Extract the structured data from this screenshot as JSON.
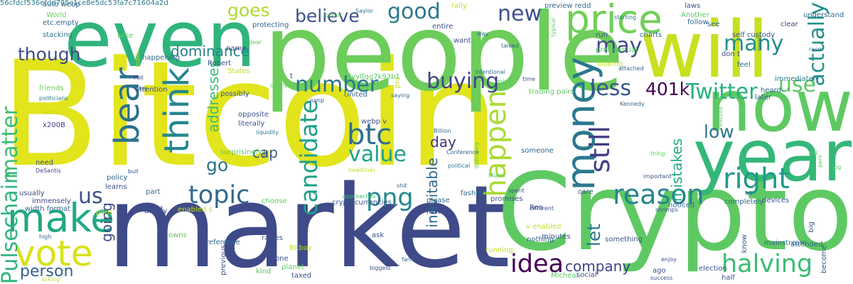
{
  "cloud": {
    "words": [
      {
        "text": "Bitcoin",
        "color": "#e2e41c"
      },
      {
        "text": "market",
        "color": "#3f4a89"
      },
      {
        "text": "Crypto",
        "color": "#5ec962"
      },
      {
        "text": "people",
        "color": "#6ccd5a"
      },
      {
        "text": "even",
        "color": "#2fb47c"
      },
      {
        "text": "will",
        "color": "#c8e020"
      },
      {
        "text": "now",
        "color": "#5ec962"
      },
      {
        "text": "year",
        "color": "#35b779"
      },
      {
        "text": "money",
        "color": "#2a788e"
      },
      {
        "text": "think",
        "color": "#24878e"
      },
      {
        "text": "bear",
        "color": "#2c718e"
      },
      {
        "text": "price",
        "color": "#70cf57"
      },
      {
        "text": "make",
        "color": "#22a884"
      },
      {
        "text": "vote",
        "color": "#d8e219"
      },
      {
        "text": "reason",
        "color": "#25848e"
      },
      {
        "text": "candidate",
        "color": "#1fa088"
      },
      {
        "text": "right",
        "color": "#1f9a8a"
      },
      {
        "text": "still",
        "color": "#433e85"
      },
      {
        "text": "btc",
        "color": "#2d708e"
      },
      {
        "text": "Twitter",
        "color": "#29af7f"
      },
      {
        "text": "Pulsechain",
        "color": "#2fb47c"
      },
      {
        "text": "matter",
        "color": "#3dbc74"
      },
      {
        "text": "halving",
        "color": "#3dbc74"
      },
      {
        "text": "idea",
        "color": "#440154"
      },
      {
        "text": "png",
        "color": "#23898e"
      },
      {
        "text": "topic",
        "color": "#31688e"
      },
      {
        "text": "number",
        "color": "#2a768e"
      },
      {
        "text": "value",
        "color": "#1fa287"
      },
      {
        "text": "buying",
        "color": "#414487"
      },
      {
        "text": "happen",
        "color": "#a8db34"
      },
      {
        "text": "good",
        "color": "#2a788e"
      },
      {
        "text": "many",
        "color": "#21918c"
      },
      {
        "text": "new",
        "color": "#3b528b"
      },
      {
        "text": "actually",
        "color": "#21918c"
      },
      {
        "text": "less",
        "color": "#3b528b"
      },
      {
        "text": "use",
        "color": "#5ec962"
      },
      {
        "text": "may",
        "color": "#3e4a89"
      },
      {
        "text": "401k",
        "color": "#440154"
      },
      {
        "text": "low",
        "color": "#2b758e"
      },
      {
        "text": "though",
        "color": "#3e4989"
      },
      {
        "text": "believe",
        "color": "#3b528b"
      },
      {
        "text": "goes",
        "color": "#addc30"
      },
      {
        "text": "us",
        "color": "#3b528b"
      },
      {
        "text": "person",
        "color": "#355f8d"
      },
      {
        "text": "go",
        "color": "#2c728e"
      },
      {
        "text": "dominance",
        "color": "#26828e"
      },
      {
        "text": "addresses",
        "color": "#3dbc74"
      },
      {
        "text": "cap",
        "color": "#38588c"
      },
      {
        "text": "day",
        "color": "#46327e"
      },
      {
        "text": "mistakes",
        "color": "#22a884"
      },
      {
        "text": "inevitable",
        "color": "#31688e"
      },
      {
        "text": "company",
        "color": "#414487"
      },
      {
        "text": "let",
        "color": "#2a788e"
      },
      {
        "text": "going",
        "color": "#3e4a89"
      },
      {
        "text": "auto webp",
        "color": "#31688e"
      },
      {
        "text": "World",
        "color": "#70cf57"
      },
      {
        "text": "etc.empty",
        "color": "#31688e"
      },
      {
        "text": "stacking",
        "color": "#2a788e"
      },
      {
        "text": "wise",
        "color": "#5ec962"
      },
      {
        "text": "happening",
        "color": "#31688e"
      },
      {
        "text": "friends",
        "color": "#6ccd5a"
      },
      {
        "text": "politicians",
        "color": "#2a788e"
      },
      {
        "text": "enter",
        "color": "#c2df23"
      },
      {
        "text": "x200B",
        "color": "#443983"
      },
      {
        "text": "need",
        "color": "#3b528b"
      },
      {
        "text": "DeSantis",
        "color": "#414487"
      },
      {
        "text": "immensely",
        "color": "#414487"
      },
      {
        "text": "usually",
        "color": "#3e4a89"
      },
      {
        "text": "width format",
        "color": "#31688e"
      },
      {
        "text": "high",
        "color": "#31688e"
      },
      {
        "text": "attention",
        "color": "#3b528b"
      },
      {
        "text": "Poll",
        "color": "#414487"
      },
      {
        "text": "give",
        "color": "#31688e"
      },
      {
        "text": "public",
        "color": "#c2df23"
      },
      {
        "text": "said",
        "color": "#1f9e89"
      },
      {
        "text": "ignore",
        "color": "#5ec962"
      },
      {
        "text": "Saylor",
        "color": "#2a788e"
      },
      {
        "text": "rally",
        "color": "#bddf26"
      },
      {
        "text": "preview redd",
        "color": "#31688e"
      },
      {
        "text": "starting",
        "color": "#2a788e"
      },
      {
        "text": "laws",
        "color": "#3b528b"
      },
      {
        "text": "Another",
        "color": "#5ec962"
      },
      {
        "text": "understand",
        "color": "#31688e"
      },
      {
        "text": "clear",
        "color": "#414487"
      },
      {
        "text": "follow",
        "color": "#31688e"
      },
      {
        "text": "see",
        "color": "#31688e"
      },
      {
        "text": "protecting",
        "color": "#31688e"
      },
      {
        "text": "entire",
        "color": "#3b528b"
      },
      {
        "text": "run",
        "color": "#3b528b"
      },
      {
        "text": "charts",
        "color": "#31688e"
      },
      {
        "text": "self custody",
        "color": "#3b528b"
      },
      {
        "text": "want",
        "color": "#3b528b"
      },
      {
        "text": "way",
        "color": "#31688e"
      },
      {
        "text": "talked",
        "color": "#31688e"
      },
      {
        "text": "typical",
        "color": "#5ec962"
      },
      {
        "text": "presidential",
        "color": "#5ec962"
      },
      {
        "text": "don t",
        "color": "#3b528b"
      },
      {
        "text": "feel",
        "color": "#31688e"
      },
      {
        "text": "looking",
        "color": "#c2df23"
      },
      {
        "text": "attached",
        "color": "#31688e"
      },
      {
        "text": "small",
        "color": "#2a788e"
      },
      {
        "text": "immediately",
        "color": "#2a788e"
      },
      {
        "text": "heard",
        "color": "#31688e"
      },
      {
        "text": "race",
        "color": "#31688e"
      },
      {
        "text": "dear",
        "color": "#5ec962"
      },
      {
        "text": "name",
        "color": "#414487"
      },
      {
        "text": "Robert",
        "color": "#3b528b"
      },
      {
        "text": "States",
        "color": "#c2df23"
      },
      {
        "text": "t",
        "color": "#3b528b"
      },
      {
        "text": "7vylfqg7k93b1",
        "color": "#5ec962"
      },
      {
        "text": "intentional",
        "color": "#31688e"
      },
      {
        "text": "pjpg",
        "color": "#5ec962"
      },
      {
        "text": "time",
        "color": "#3b528b"
      },
      {
        "text": "overly",
        "color": "#5ec962"
      },
      {
        "text": "saying",
        "color": "#31688e"
      },
      {
        "text": "United",
        "color": "#31688e"
      },
      {
        "text": "pro",
        "color": "#c2df23"
      },
      {
        "text": "trading pairs",
        "color": "#5ec962"
      },
      {
        "text": "possibly",
        "color": "#3b528b"
      },
      {
        "text": "jump",
        "color": "#3b528b"
      },
      {
        "text": "Kennedy",
        "color": "#31688e"
      },
      {
        "text": "later",
        "color": "#31688e"
      },
      {
        "text": "opposite",
        "color": "#3b528b"
      },
      {
        "text": "literally",
        "color": "#3b528b"
      },
      {
        "text": "webp v",
        "color": "#3b528b"
      },
      {
        "text": "liquidity",
        "color": "#2a788e"
      },
      {
        "text": "surprisingly",
        "color": "#5ec962"
      },
      {
        "text": "Jr",
        "color": "#31688e"
      },
      {
        "text": "Billion",
        "color": "#31688e"
      },
      {
        "text": "Conference",
        "color": "#31688e"
      },
      {
        "text": "definitely",
        "color": "#5ec962"
      },
      {
        "text": "someone",
        "color": "#31688e"
      },
      {
        "text": "thing",
        "color": "#5ec962"
      },
      {
        "text": "realized",
        "color": "#5ec962"
      },
      {
        "text": "old",
        "color": "#5ec962"
      },
      {
        "text": "pero",
        "color": "#5ec962"
      },
      {
        "text": "jpg",
        "color": "#5ec962"
      },
      {
        "text": "policy",
        "color": "#31688e"
      },
      {
        "text": "learns",
        "color": "#3b528b"
      },
      {
        "text": "bull",
        "color": "#3b528b"
      },
      {
        "text": "headlines",
        "color": "#c2df23"
      },
      {
        "text": "political",
        "color": "#2a788e"
      },
      {
        "text": "Miami",
        "color": "#5ec962"
      },
      {
        "text": "shit",
        "color": "#31688e"
      },
      {
        "text": "important",
        "color": "#3b528b"
      },
      {
        "text": "part",
        "color": "#31688e"
      },
      {
        "text": "choose",
        "color": "#5ec962"
      },
      {
        "text": "shrimps",
        "color": "#3b528b"
      },
      {
        "text": "noticed",
        "color": "#31688e"
      },
      {
        "text": "approaches",
        "color": "#3dbc74"
      },
      {
        "text": "fashion",
        "color": "#31688e"
      },
      {
        "text": "spent",
        "color": "#3b528b"
      },
      {
        "text": "care",
        "color": "#3b528b"
      },
      {
        "text": "lot",
        "color": "#31688e"
      },
      {
        "text": "completely",
        "color": "#31688e"
      },
      {
        "text": "devices",
        "color": "#3b528b"
      },
      {
        "text": "project",
        "color": "#3b528b"
      },
      {
        "text": "poor",
        "color": "#c2df23"
      },
      {
        "text": "BEARy",
        "color": "#3b528b"
      },
      {
        "text": "enabled s",
        "color": "#c2df23"
      },
      {
        "text": "cryptocurrencies",
        "color": "#3b528b"
      },
      {
        "text": "please",
        "color": "#31688e"
      },
      {
        "text": "first",
        "color": "#3b528b"
      },
      {
        "text": "promises",
        "color": "#3b528b"
      },
      {
        "text": "Ron",
        "color": "#3b528b"
      },
      {
        "text": "different",
        "color": "#3b528b"
      },
      {
        "text": "mainstream",
        "color": "#31688e"
      },
      {
        "text": "attended",
        "color": "#31688e"
      },
      {
        "text": "big",
        "color": "#3b528b"
      },
      {
        "text": "owns",
        "color": "#5ec962"
      },
      {
        "text": "reference",
        "color": "#31688e"
      },
      {
        "text": "rallies",
        "color": "#3b528b"
      },
      {
        "text": "Bitboy",
        "color": "#c2df23"
      },
      {
        "text": "one",
        "color": "#3b528b"
      },
      {
        "text": "previous",
        "color": "#3b528b"
      },
      {
        "text": "v enabled",
        "color": "#c2df23"
      },
      {
        "text": "nothing",
        "color": "#31688e"
      },
      {
        "text": "minutes",
        "color": "#3b528b"
      },
      {
        "text": "something",
        "color": "#3b528b"
      },
      {
        "text": "know",
        "color": "#3b528b"
      },
      {
        "text": "ask",
        "color": "#3b528b"
      },
      {
        "text": "running",
        "color": "#c2df23"
      },
      {
        "text": "enjoy",
        "color": "#3b528b"
      },
      {
        "text": "ago",
        "color": "#3b528b"
      },
      {
        "text": "election",
        "color": "#3b528b"
      },
      {
        "text": "half",
        "color": "#3b528b"
      },
      {
        "text": "become",
        "color": "#3b528b"
      },
      {
        "text": "planet",
        "color": "#5ec962"
      },
      {
        "text": "kind",
        "color": "#5ec962"
      },
      {
        "text": "taxed",
        "color": "#3b528b"
      },
      {
        "text": "biggest",
        "color": "#3b528b"
      },
      {
        "text": "farm",
        "color": "#31688e"
      },
      {
        "text": "Micheal",
        "color": "#5ec962"
      },
      {
        "text": "social",
        "color": "#3b528b"
      },
      {
        "text": "success",
        "color": "#3b528b"
      },
      {
        "text": "asking",
        "color": "#c2df23"
      },
      {
        "text": "56cfdcf536efdd795c1ce8e5dc53fa7c71604a2d",
        "color": "#2a788e"
      }
    ]
  }
}
